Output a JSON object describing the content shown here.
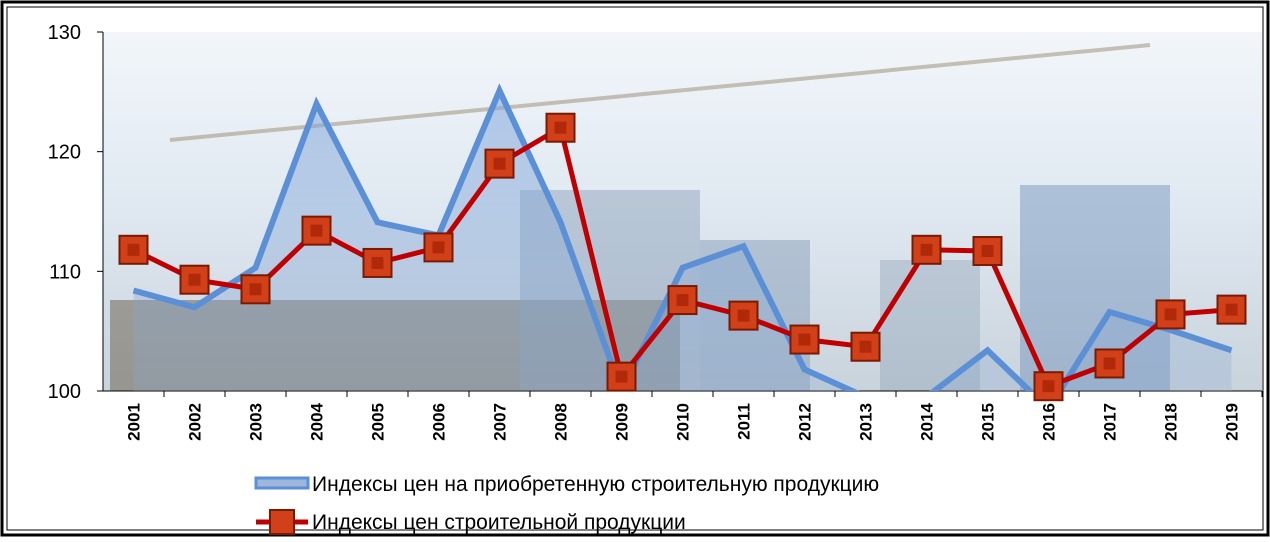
{
  "chart_data": {
    "type": "line",
    "categories": [
      "2001",
      "2002",
      "2003",
      "2004",
      "2005",
      "2006",
      "2007",
      "2008",
      "2009",
      "2010",
      "2011",
      "2012",
      "2013",
      "2014",
      "2015",
      "2016",
      "2017",
      "2018",
      "2019"
    ],
    "series": [
      {
        "name": "Индексы цен на приобретенную строительную продукцию",
        "color": "#5b8fd6",
        "style": "area",
        "values": [
          108.4,
          107.0,
          110.3,
          124.0,
          114.1,
          113.0,
          125.1,
          114.1,
          100.0,
          110.3,
          112.1,
          101.8,
          99.5,
          99.5,
          103.4,
          98.5,
          106.6,
          105.1,
          103.4
        ]
      },
      {
        "name": "Индексы цен строительной продукции",
        "color": "#c00000",
        "style": "line-markers",
        "values": [
          111.8,
          109.3,
          108.5,
          113.4,
          110.7,
          112.0,
          119.0,
          122.0,
          101.2,
          107.6,
          106.3,
          104.3,
          103.7,
          111.8,
          111.7,
          100.4,
          102.3,
          106.4,
          106.8
        ]
      }
    ],
    "ylim": [
      100,
      130
    ],
    "yticks": [
      100,
      110,
      120,
      130
    ],
    "grid": false
  }
}
